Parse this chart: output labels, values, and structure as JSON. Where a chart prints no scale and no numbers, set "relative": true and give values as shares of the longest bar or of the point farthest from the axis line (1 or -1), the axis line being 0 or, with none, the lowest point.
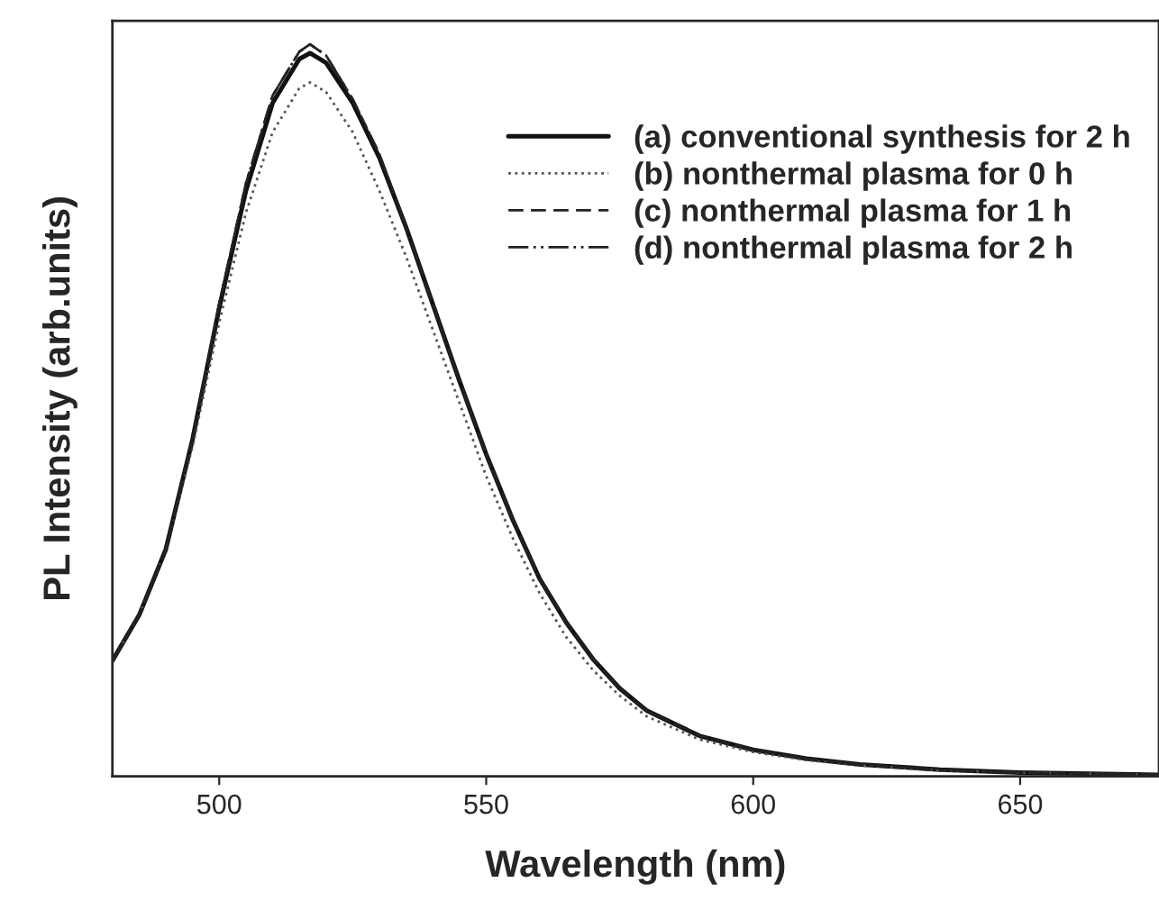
{
  "chart_data": {
    "type": "line",
    "relative": true,
    "xlabel": "Wavelength (nm)",
    "ylabel": "PL Intensity (arb.units)",
    "xlim": [
      480,
      676
    ],
    "xticks": [
      500,
      550,
      600,
      650
    ],
    "legend": "top right",
    "grid": false,
    "marker": "none",
    "x": [
      480,
      485,
      490,
      495,
      500,
      505,
      510,
      515,
      517,
      520,
      525,
      530,
      535,
      540,
      545,
      550,
      555,
      560,
      565,
      570,
      575,
      580,
      590,
      600,
      610,
      620,
      635,
      650,
      676
    ],
    "series": [
      {
        "name": "(a) conventional synthesis for 2 h",
        "color": "#111111",
        "line_style": "solid",
        "values": [
          0.158,
          0.22,
          0.31,
          0.46,
          0.64,
          0.8,
          0.92,
          0.98,
          0.988,
          0.975,
          0.92,
          0.845,
          0.75,
          0.645,
          0.54,
          0.44,
          0.35,
          0.27,
          0.21,
          0.16,
          0.12,
          0.09,
          0.055,
          0.036,
          0.024,
          0.016,
          0.009,
          0.005,
          0.002
        ]
      },
      {
        "name": "(b) nonthermal plasma for 0 h",
        "color": "#555555",
        "line_style": "dotted",
        "values": [
          0.158,
          0.22,
          0.31,
          0.45,
          0.62,
          0.77,
          0.88,
          0.94,
          0.948,
          0.935,
          0.88,
          0.8,
          0.71,
          0.61,
          0.51,
          0.41,
          0.325,
          0.25,
          0.19,
          0.145,
          0.11,
          0.082,
          0.05,
          0.033,
          0.022,
          0.015,
          0.008,
          0.005,
          0.002
        ]
      },
      {
        "name": "(c) nonthermal plasma for 1 h",
        "color": "#222222",
        "line_style": "dashed",
        "values": [
          0.158,
          0.22,
          0.31,
          0.46,
          0.645,
          0.81,
          0.93,
          0.99,
          1.0,
          0.985,
          0.925,
          0.85,
          0.75,
          0.645,
          0.54,
          0.44,
          0.35,
          0.27,
          0.21,
          0.16,
          0.12,
          0.09,
          0.055,
          0.036,
          0.024,
          0.016,
          0.009,
          0.005,
          0.002
        ]
      },
      {
        "name": "(d) nonthermal plasma for 2 h",
        "color": "#222222",
        "line_style": "dashdot",
        "values": [
          0.158,
          0.22,
          0.31,
          0.46,
          0.645,
          0.81,
          0.93,
          0.99,
          1.0,
          0.985,
          0.925,
          0.85,
          0.75,
          0.645,
          0.54,
          0.44,
          0.35,
          0.27,
          0.21,
          0.16,
          0.12,
          0.09,
          0.055,
          0.036,
          0.024,
          0.016,
          0.009,
          0.005,
          0.002
        ]
      }
    ]
  }
}
